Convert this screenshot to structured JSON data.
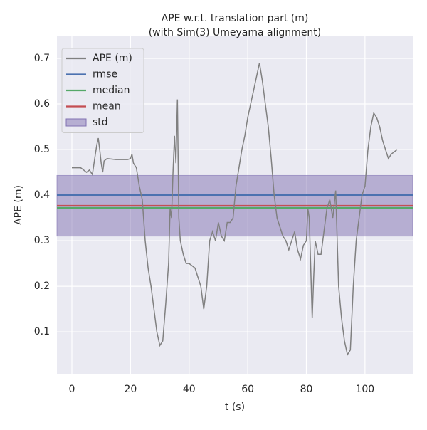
{
  "chart_data": {
    "type": "line",
    "title": "APE w.r.t. translation part (m)",
    "subtitle": "(with Sim(3) Umeyama alignment)",
    "xlabel": "t (s)",
    "ylabel": "APE (m)",
    "xlim": [
      -5.1,
      116.3
    ],
    "ylim": [
      0.008,
      0.75
    ],
    "xticks": [
      0,
      20,
      40,
      60,
      80,
      100
    ],
    "yticks": [
      0.1,
      0.2,
      0.3,
      0.4,
      0.5,
      0.6,
      0.7
    ],
    "grid": true,
    "legend": "upper left",
    "series": [
      {
        "name": "APE (m)",
        "color": "#808080",
        "x": [
          0,
          3,
          4,
          5,
          6,
          7,
          8,
          8.5,
          9,
          9.5,
          10,
          10.5,
          11,
          12,
          15,
          19,
          20,
          20.5,
          21,
          22,
          23,
          24,
          25,
          26,
          27,
          28,
          29,
          30,
          31,
          32,
          33,
          33.5,
          34,
          34.5,
          35,
          35.5,
          36,
          36.5,
          37,
          38,
          39,
          40,
          41,
          42,
          43,
          44,
          45,
          46,
          47,
          48,
          49,
          50,
          51,
          52,
          53,
          54,
          55,
          56,
          57,
          58,
          59,
          60,
          61,
          62,
          63,
          64,
          65,
          66,
          67,
          68,
          69,
          70,
          71,
          72,
          73,
          74,
          75,
          76,
          77,
          78,
          79,
          80,
          80.5,
          81,
          82,
          82.5,
          83,
          84,
          85,
          86,
          87,
          88,
          89,
          90,
          91,
          92,
          93,
          94,
          95,
          96,
          97,
          98,
          99,
          100,
          101,
          102,
          103,
          104,
          105,
          106,
          107,
          108,
          109,
          110,
          111
        ],
        "values": [
          0.46,
          0.46,
          0.455,
          0.45,
          0.455,
          0.445,
          0.49,
          0.51,
          0.525,
          0.5,
          0.47,
          0.45,
          0.475,
          0.48,
          0.478,
          0.478,
          0.48,
          0.49,
          0.47,
          0.46,
          0.42,
          0.39,
          0.3,
          0.24,
          0.2,
          0.15,
          0.1,
          0.07,
          0.08,
          0.16,
          0.25,
          0.37,
          0.35,
          0.45,
          0.53,
          0.47,
          0.61,
          0.35,
          0.3,
          0.27,
          0.25,
          0.25,
          0.245,
          0.24,
          0.22,
          0.2,
          0.15,
          0.2,
          0.3,
          0.32,
          0.3,
          0.34,
          0.31,
          0.3,
          0.34,
          0.34,
          0.35,
          0.42,
          0.46,
          0.5,
          0.53,
          0.57,
          0.6,
          0.63,
          0.66,
          0.69,
          0.65,
          0.6,
          0.55,
          0.48,
          0.4,
          0.35,
          0.33,
          0.31,
          0.3,
          0.28,
          0.3,
          0.32,
          0.28,
          0.26,
          0.29,
          0.3,
          0.37,
          0.35,
          0.13,
          0.22,
          0.3,
          0.27,
          0.27,
          0.32,
          0.37,
          0.39,
          0.35,
          0.41,
          0.2,
          0.13,
          0.08,
          0.05,
          0.06,
          0.2,
          0.3,
          0.35,
          0.4,
          0.42,
          0.5,
          0.55,
          0.58,
          0.57,
          0.55,
          0.52,
          0.5,
          0.48,
          0.49,
          0.495,
          0.5
        ]
      }
    ],
    "stats": [
      {
        "name": "rmse",
        "color": "#4c72b0",
        "value": 0.4
      },
      {
        "name": "median",
        "color": "#55a868",
        "value": 0.372
      },
      {
        "name": "mean",
        "color": "#c44e52",
        "value": 0.3766
      }
    ],
    "band": {
      "name": "std",
      "color": "#8172b2",
      "value": 0.0665
    }
  }
}
